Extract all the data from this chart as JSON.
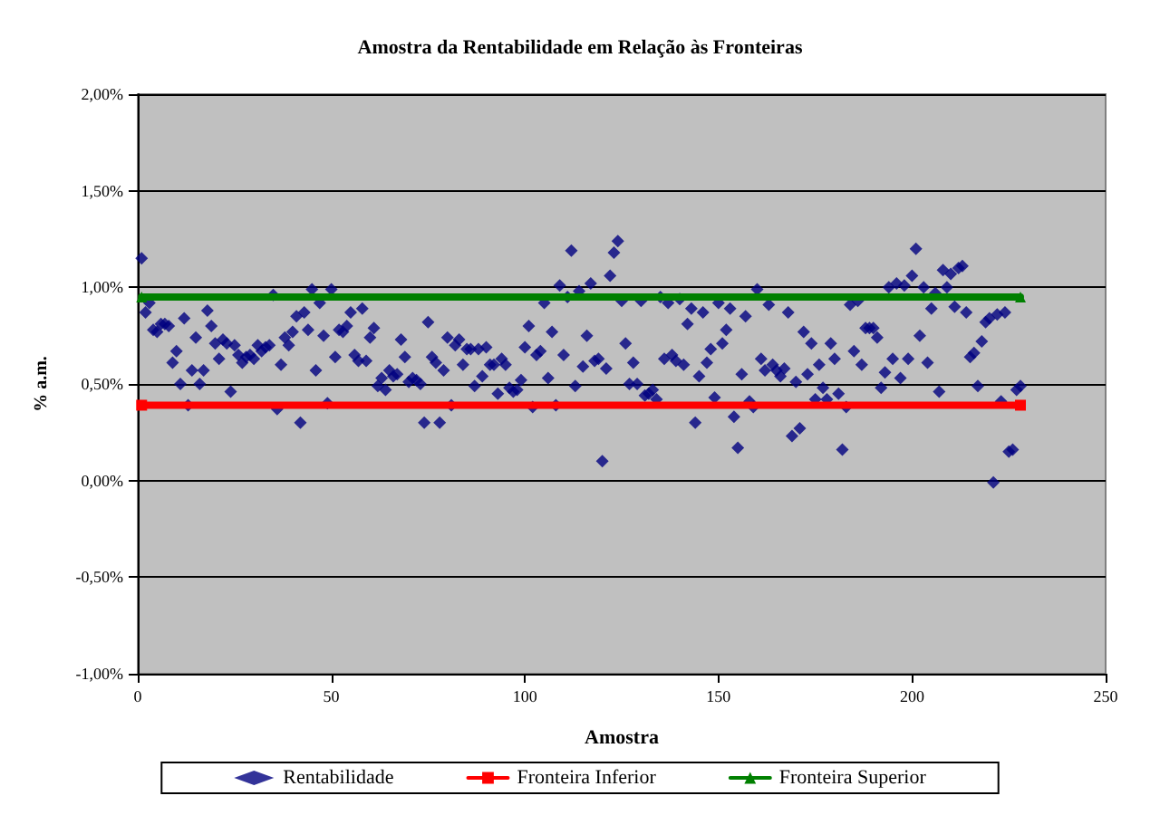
{
  "chart_data": {
    "type": "scatter",
    "title": "Amostra da Rentabilidade em Relação às Fronteiras",
    "xlabel": "Amostra",
    "ylabel": "% a.m.",
    "xlim": [
      0,
      250
    ],
    "xticks": [
      0,
      50,
      100,
      150,
      200,
      250
    ],
    "ylim": [
      -1,
      2
    ],
    "yticks": [
      {
        "value": -1,
        "label": "-1,00%"
      },
      {
        "value": -0.5,
        "label": "-0,50%"
      },
      {
        "value": 0,
        "label": "0,00%"
      },
      {
        "value": 0.5,
        "label": "0,50%"
      },
      {
        "value": 1,
        "label": "1,00%"
      },
      {
        "value": 1.5,
        "label": "1,50%"
      },
      {
        "value": 2,
        "label": "2,00%"
      }
    ],
    "grid": "y",
    "legend": "bottom",
    "series": [
      {
        "name": "Rentabilidade",
        "marker": "diamond",
        "color": "#000080",
        "x": [
          1,
          2,
          3,
          4,
          5,
          6,
          7,
          8,
          9,
          10,
          11,
          12,
          13,
          14,
          15,
          16,
          17,
          18,
          19,
          20,
          21,
          22,
          23,
          24,
          25,
          26,
          27,
          28,
          29,
          30,
          31,
          32,
          33,
          34,
          35,
          36,
          37,
          38,
          39,
          40,
          41,
          42,
          43,
          44,
          45,
          46,
          47,
          48,
          49,
          50,
          51,
          52,
          53,
          54,
          55,
          56,
          57,
          58,
          59,
          60,
          61,
          62,
          63,
          64,
          65,
          66,
          67,
          68,
          69,
          70,
          71,
          72,
          73,
          74,
          75,
          76,
          77,
          78,
          79,
          80,
          81,
          82,
          83,
          84,
          85,
          86,
          87,
          88,
          89,
          90,
          91,
          92,
          93,
          94,
          95,
          96,
          97,
          98,
          99,
          100,
          101,
          102,
          103,
          104,
          105,
          106,
          107,
          108,
          109,
          110,
          111,
          112,
          113,
          114,
          115,
          116,
          117,
          118,
          119,
          120,
          121,
          122,
          123,
          124,
          125,
          126,
          127,
          128,
          129,
          130,
          131,
          132,
          133,
          134,
          135,
          136,
          137,
          138,
          139,
          140,
          141,
          142,
          143,
          144,
          145,
          146,
          147,
          148,
          149,
          150,
          151,
          152,
          153,
          154,
          155,
          156,
          157,
          158,
          159,
          160,
          161,
          162,
          163,
          164,
          165,
          166,
          167,
          168,
          169,
          170,
          171,
          172,
          173,
          174,
          175,
          176,
          177,
          178,
          179,
          180,
          181,
          182,
          183,
          184,
          185,
          186,
          187,
          188,
          189,
          190,
          191,
          192,
          193,
          194,
          195,
          196,
          197,
          198,
          199,
          200,
          201,
          202,
          203,
          204,
          205,
          206,
          207,
          208,
          209,
          210,
          211,
          212,
          213,
          214,
          215,
          216,
          217,
          218,
          219,
          220,
          221,
          222,
          223,
          224,
          225,
          226,
          227,
          228
        ],
        "values": [
          1.15,
          0.87,
          0.92,
          0.78,
          0.77,
          0.81,
          0.81,
          0.8,
          0.61,
          0.67,
          0.5,
          0.84,
          0.39,
          0.57,
          0.74,
          0.5,
          0.57,
          0.88,
          0.8,
          0.71,
          0.63,
          0.73,
          0.71,
          0.46,
          0.7,
          0.65,
          0.61,
          0.64,
          0.65,
          0.63,
          0.7,
          0.67,
          0.69,
          0.7,
          0.96,
          0.37,
          0.6,
          0.74,
          0.7,
          0.77,
          0.85,
          0.3,
          0.87,
          0.78,
          0.99,
          0.57,
          0.92,
          0.75,
          0.4,
          0.99,
          0.64,
          0.78,
          0.77,
          0.8,
          0.87,
          0.65,
          0.62,
          0.89,
          0.62,
          0.74,
          0.79,
          0.49,
          0.53,
          0.47,
          0.57,
          0.54,
          0.55,
          0.73,
          0.64,
          0.51,
          0.53,
          0.52,
          0.5,
          0.3,
          0.82,
          0.64,
          0.61,
          0.3,
          0.57,
          0.74,
          0.39,
          0.7,
          0.73,
          0.6,
          0.68,
          0.68,
          0.49,
          0.68,
          0.54,
          0.69,
          0.6,
          0.6,
          0.45,
          0.63,
          0.6,
          0.48,
          0.46,
          0.47,
          0.52,
          0.69,
          0.8,
          0.38,
          0.65,
          0.67,
          0.92,
          0.53,
          0.77,
          0.39,
          1.01,
          0.65,
          0.95,
          1.19,
          0.49,
          0.98,
          0.59,
          0.75,
          1.02,
          0.62,
          0.63,
          0.1,
          0.58,
          1.06,
          1.18,
          1.24,
          0.93,
          0.71,
          0.5,
          0.61,
          0.5,
          0.93,
          0.44,
          0.45,
          0.47,
          0.42,
          0.95,
          0.63,
          0.92,
          0.65,
          0.62,
          0.94,
          0.6,
          0.81,
          0.89,
          0.3,
          0.54,
          0.87,
          0.61,
          0.68,
          0.43,
          0.92,
          0.71,
          0.78,
          0.89,
          0.33,
          0.17,
          0.55,
          0.85,
          0.41,
          0.38,
          0.99,
          0.63,
          0.57,
          0.91,
          0.6,
          0.57,
          0.54,
          0.58,
          0.87,
          0.23,
          0.51,
          0.27,
          0.77,
          0.55,
          0.71,
          0.42,
          0.6,
          0.48,
          0.42,
          0.71,
          0.63,
          0.45,
          0.16,
          0.38,
          0.91,
          0.67,
          0.93,
          0.6,
          0.79,
          0.79,
          0.79,
          0.74,
          0.48,
          0.56,
          1.0,
          0.63,
          1.02,
          0.53,
          1.01,
          0.63,
          1.06,
          1.2,
          0.75,
          1.0,
          0.61,
          0.89,
          0.97,
          0.46,
          1.09,
          1.0,
          1.07,
          0.9,
          1.1,
          1.11,
          0.87,
          0.64,
          0.66,
          0.49,
          0.72,
          0.82,
          0.84,
          -0.01,
          0.86,
          0.41,
          0.87,
          0.15,
          0.16,
          0.47,
          0.49
        ]
      },
      {
        "name": "Fronteira Inferior",
        "type": "line",
        "marker": "square",
        "color": "#ff0000",
        "x": [
          1,
          228
        ],
        "values": [
          0.39,
          0.39
        ]
      },
      {
        "name": "Fronteira Superior",
        "type": "line",
        "marker": "triangle",
        "color": "#008000",
        "x": [
          1,
          228
        ],
        "values": [
          0.95,
          0.95
        ]
      }
    ]
  }
}
